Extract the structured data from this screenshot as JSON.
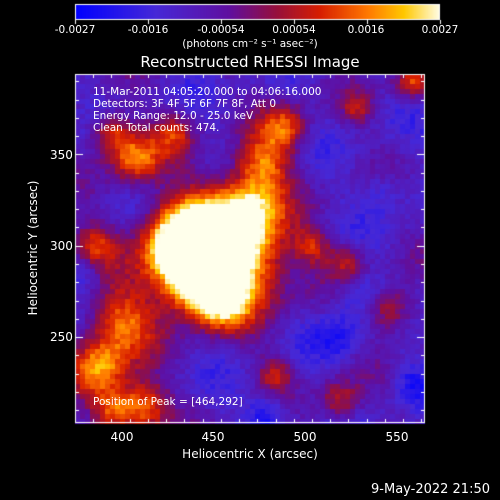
{
  "chart_data": {
    "type": "heatmap",
    "title": "Reconstructed RHESSI Image",
    "xlabel": "Heliocentric X (arcsec)",
    "ylabel": "Heliocentric Y (arcsec)",
    "xlim": [
      375,
      567
    ],
    "ylim": [
      203,
      394
    ],
    "x_ticks": [
      "400",
      "450",
      "500",
      "550"
    ],
    "y_ticks": [
      "250",
      "300",
      "350"
    ],
    "colorbar": {
      "ticks": [
        "-0.0027",
        "-0.0016",
        "-0.00054",
        "0.00054",
        "0.0016",
        "0.0027"
      ],
      "range": [
        -0.0027,
        0.0027
      ],
      "units": "(photons cm⁻² s⁻¹ asec⁻²)"
    },
    "annotations": [
      "11-Mar-2011 04:05:20.000 to 04:06:16.000",
      "Detectors: 3F 4F 5F 6F 7F 8F, Att 0",
      "Energy Range: 12.0 - 25.0 keV",
      "Clean     Total counts: 474."
    ],
    "peak_text": "Position of Peak = [464,292]",
    "peak": [
      464,
      292
    ],
    "blobs": [
      {
        "x": 462,
        "y": 292,
        "r": 20,
        "a": 1.0
      },
      {
        "x": 445,
        "y": 305,
        "r": 17,
        "a": 0.85
      },
      {
        "x": 430,
        "y": 300,
        "r": 14,
        "a": 0.75
      },
      {
        "x": 470,
        "y": 320,
        "r": 13,
        "a": 0.65
      },
      {
        "x": 440,
        "y": 280,
        "r": 13,
        "a": 0.7
      },
      {
        "x": 455,
        "y": 270,
        "r": 10,
        "a": 0.6
      },
      {
        "x": 478,
        "y": 345,
        "r": 11,
        "a": 0.6
      },
      {
        "x": 490,
        "y": 365,
        "r": 9,
        "a": 0.55
      },
      {
        "x": 408,
        "y": 348,
        "r": 10,
        "a": 0.65
      },
      {
        "x": 395,
        "y": 362,
        "r": 8,
        "a": 0.55
      },
      {
        "x": 430,
        "y": 362,
        "r": 8,
        "a": 0.45
      },
      {
        "x": 385,
        "y": 300,
        "r": 9,
        "a": 0.5
      },
      {
        "x": 400,
        "y": 258,
        "r": 14,
        "a": 0.65
      },
      {
        "x": 388,
        "y": 232,
        "r": 11,
        "a": 0.7
      },
      {
        "x": 412,
        "y": 212,
        "r": 10,
        "a": 0.7
      },
      {
        "x": 395,
        "y": 210,
        "r": 8,
        "a": 0.55
      },
      {
        "x": 548,
        "y": 265,
        "r": 9,
        "a": 0.55
      },
      {
        "x": 525,
        "y": 290,
        "r": 8,
        "a": 0.45
      },
      {
        "x": 505,
        "y": 300,
        "r": 7,
        "a": 0.4
      },
      {
        "x": 560,
        "y": 390,
        "r": 7,
        "a": 0.55
      },
      {
        "x": 530,
        "y": 375,
        "r": 6,
        "a": 0.35
      },
      {
        "x": 520,
        "y": 215,
        "r": 8,
        "a": 0.45
      },
      {
        "x": 485,
        "y": 230,
        "r": 7,
        "a": 0.4
      }
    ],
    "dark_blobs": [
      {
        "x": 480,
        "y": 207,
        "r": 8,
        "a": 0.9
      },
      {
        "x": 530,
        "y": 275,
        "r": 10,
        "a": 0.7
      },
      {
        "x": 520,
        "y": 250,
        "r": 9,
        "a": 0.6
      },
      {
        "x": 380,
        "y": 285,
        "r": 7,
        "a": 0.6
      },
      {
        "x": 545,
        "y": 330,
        "r": 8,
        "a": 0.5
      },
      {
        "x": 560,
        "y": 225,
        "r": 7,
        "a": 0.6
      }
    ]
  },
  "timestamp": "9-May-2022 21:50"
}
